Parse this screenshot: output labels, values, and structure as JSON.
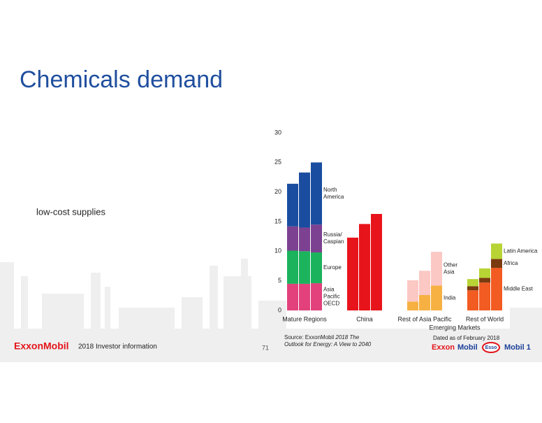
{
  "title": "Chemicals demand",
  "body_text": "low-cost supplies",
  "footer": {
    "company": "ExxonMobil",
    "event": "2018 Investor information",
    "page": "71"
  },
  "source": {
    "prefix": "Source: ExxonMobil",
    "title_line1": "2018 The",
    "title_line2": "Outlook for Energy: A View to 2040",
    "dated": "Dated as of February 2018"
  },
  "brands": [
    "Exxon",
    "Mobil",
    "Esso",
    "Mobil 1"
  ],
  "chart_data": {
    "type": "stacked_bar",
    "ylim": [
      0,
      30
    ],
    "yticks": [
      0,
      5,
      10,
      15,
      20,
      25,
      30
    ],
    "supergroup_label": "Emerging Markets",
    "groups": [
      {
        "label": "Mature Regions",
        "series": [
          {
            "name": "Asia\nPacific\nOECD",
            "color": "#e2417c",
            "values": [
              4.5,
              4.5,
              4.6
            ]
          },
          {
            "name": "Europe",
            "color": "#1bb35c",
            "values": [
              5.6,
              5.5,
              5.2
            ]
          },
          {
            "name": "Russia/\nCaspian",
            "color": "#7c4190",
            "values": [
              4.1,
              4.0,
              4.7
            ]
          },
          {
            "name": "North\nAmerica",
            "color": "#1a4da0",
            "values": [
              7.2,
              9.3,
              10.5
            ]
          }
        ]
      },
      {
        "label": "China",
        "series": [
          {
            "color": "#e8141b",
            "values": [
              12.3,
              14.6,
              16.3
            ]
          }
        ]
      },
      {
        "label": "Rest of Asia Pacific",
        "series": [
          {
            "name": "India",
            "color": "#f6b142",
            "values": [
              1.5,
              2.6,
              4.2
            ]
          },
          {
            "name": "Other\nAsia",
            "color": "#fbc8c4",
            "values": [
              3.6,
              4.1,
              5.7
            ]
          }
        ]
      },
      {
        "label": "Rest of World",
        "series": [
          {
            "name": "Middle East",
            "color": "#f25b22",
            "values": [
              3.4,
              4.7,
              7.2
            ]
          },
          {
            "name": "Africa",
            "color": "#7a3b10",
            "values": [
              0.7,
              0.8,
              1.5
            ]
          },
          {
            "name": "Latin America",
            "color": "#b7d434",
            "values": [
              1.2,
              1.6,
              2.6
            ]
          }
        ]
      }
    ]
  }
}
